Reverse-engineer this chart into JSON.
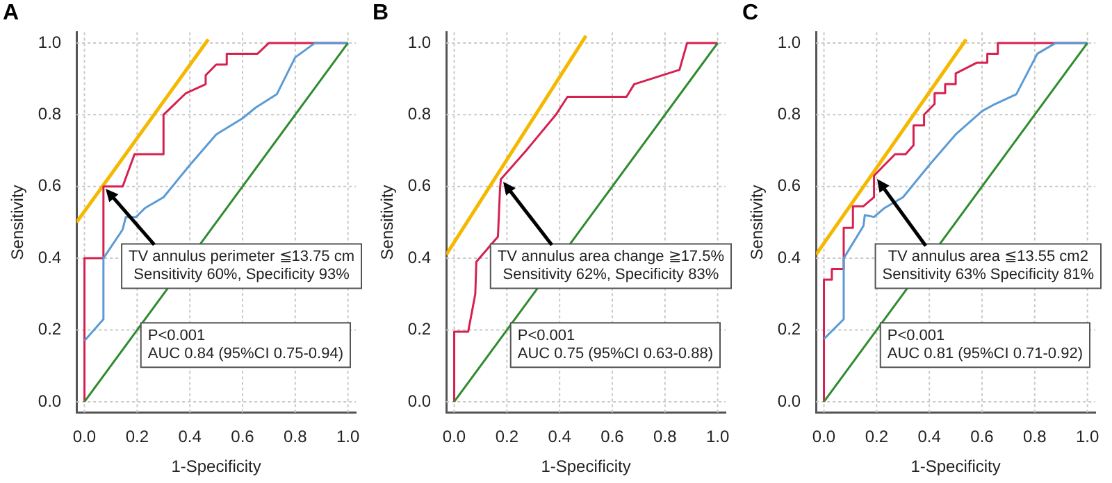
{
  "chart_data": [
    {
      "type": "line",
      "title": "A",
      "xlabel": "1-Specificity",
      "ylabel": "Sensitivity",
      "xlim": [
        -0.03,
        1.03
      ],
      "ylim": [
        -0.03,
        1.03
      ],
      "xticks": [
        {
          "value": 0,
          "label": "0.0"
        },
        {
          "value": 0.2,
          "label": "0.2"
        },
        {
          "value": 0.4,
          "label": "0.4"
        },
        {
          "value": 0.6,
          "label": "0.6"
        },
        {
          "value": 0.8,
          "label": "0.8"
        },
        {
          "value": 1,
          "label": "1.0"
        }
      ],
      "yticks": [
        {
          "value": 0,
          "label": "0.0"
        },
        {
          "value": 0.2,
          "label": "0.2"
        },
        {
          "value": 0.4,
          "label": "0.4"
        },
        {
          "value": 0.6,
          "label": "0.6"
        },
        {
          "value": 0.8,
          "label": "0.8"
        },
        {
          "value": 1,
          "label": "1.0"
        }
      ],
      "grid": true,
      "marker": "none",
      "line_style": "solid",
      "series": [
        {
          "color": "#2e8b2e",
          "x": [
            0,
            1
          ],
          "values": [
            0,
            1
          ]
        },
        {
          "color": "#5b9bd5",
          "x": [
            0,
            0.072,
            0.072,
            0.145,
            0.157,
            0.196,
            0.23,
            0.3,
            0.4,
            0.5,
            0.6,
            0.65,
            0.73,
            0.8,
            0.875,
            1
          ],
          "values": [
            0.17,
            0.23,
            0.4,
            0.48,
            0.515,
            0.515,
            0.54,
            0.57,
            0.66,
            0.745,
            0.79,
            0.82,
            0.857,
            0.96,
            1,
            1
          ]
        },
        {
          "color": "#d6204f",
          "x": [
            0,
            0,
            0.072,
            0.072,
            0.145,
            0.19,
            0.3,
            0.3,
            0.385,
            0.46,
            0.46,
            0.5,
            0.54,
            0.54,
            0.657,
            0.7,
            1
          ],
          "values": [
            0,
            0.4,
            0.4,
            0.6,
            0.6,
            0.69,
            0.69,
            0.8,
            0.86,
            0.885,
            0.91,
            0.94,
            0.94,
            0.97,
            0.97,
            1,
            1
          ]
        },
        {
          "color": "#f5b800",
          "x": [
            -0.03,
            0.47
          ],
          "values": [
            0.5,
            1.01
          ]
        }
      ],
      "annotations": [
        {
          "text": "TV annulus perimeter ≦13.75 cm\nSensitivity 60%, Specificity 93%",
          "x": 0.072,
          "y": 0.6
        },
        "P<0.001\nAUC 0.84 (95%CI 0.75-0.94)"
      ]
    },
    {
      "type": "line",
      "title": "B",
      "xlabel": "1-Specificity",
      "ylabel": "Sensitivity",
      "xlim": [
        -0.03,
        1.03
      ],
      "ylim": [
        -0.03,
        1.03
      ],
      "xticks": [
        {
          "value": 0,
          "label": "0.0"
        },
        {
          "value": 0.2,
          "label": "0.2"
        },
        {
          "value": 0.4,
          "label": "0.4"
        },
        {
          "value": 0.6,
          "label": "0.6"
        },
        {
          "value": 0.8,
          "label": "0.8"
        },
        {
          "value": 1,
          "label": "1.0"
        }
      ],
      "yticks": [
        {
          "value": 0,
          "label": "0.0"
        },
        {
          "value": 0.2,
          "label": "0.2"
        },
        {
          "value": 0.4,
          "label": "0.4"
        },
        {
          "value": 0.6,
          "label": "0.6"
        },
        {
          "value": 0.8,
          "label": "0.8"
        },
        {
          "value": 1,
          "label": "1.0"
        }
      ],
      "grid": true,
      "marker": "none",
      "line_style": "solid",
      "series": [
        {
          "color": "#2e8b2e",
          "x": [
            0,
            1
          ],
          "values": [
            0,
            1
          ]
        },
        {
          "color": "#d6204f",
          "x": [
            0,
            0,
            0.053,
            0.08,
            0.084,
            0.166,
            0.174,
            0.177,
            0.273,
            0.386,
            0.43,
            0.654,
            0.683,
            0.855,
            0.884,
            1
          ],
          "values": [
            0,
            0.195,
            0.195,
            0.3,
            0.39,
            0.46,
            0.595,
            0.62,
            0.7,
            0.8,
            0.85,
            0.85,
            0.885,
            0.925,
            1,
            1
          ]
        },
        {
          "color": "#f5b800",
          "x": [
            -0.03,
            0.5
          ],
          "values": [
            0.41,
            1.02
          ]
        }
      ],
      "annotations": [
        {
          "text": "TV annulus area change ≧17.5%\nSensitivity 62%, Specificity 83%",
          "x": 0.177,
          "y": 0.62
        },
        "P<0.001\nAUC 0.75 (95%CI 0.63-0.88)"
      ]
    },
    {
      "type": "line",
      "title": "C",
      "xlabel": "1-Specificity",
      "ylabel": "Sensitivity",
      "xlim": [
        -0.03,
        1.03
      ],
      "ylim": [
        -0.03,
        1.03
      ],
      "xticks": [
        {
          "value": 0,
          "label": "0.0"
        },
        {
          "value": 0.2,
          "label": "0.2"
        },
        {
          "value": 0.4,
          "label": "0.4"
        },
        {
          "value": 0.6,
          "label": "0.6"
        },
        {
          "value": 0.8,
          "label": "0.8"
        },
        {
          "value": 1,
          "label": "1.0"
        }
      ],
      "yticks": [
        {
          "value": 0,
          "label": "0.0"
        },
        {
          "value": 0.2,
          "label": "0.2"
        },
        {
          "value": 0.4,
          "label": "0.4"
        },
        {
          "value": 0.6,
          "label": "0.6"
        },
        {
          "value": 0.8,
          "label": "0.8"
        },
        {
          "value": 1,
          "label": "1.0"
        }
      ],
      "grid": true,
      "marker": "none",
      "line_style": "solid",
      "series": [
        {
          "color": "#2e8b2e",
          "x": [
            0,
            1
          ],
          "values": [
            0,
            1
          ]
        },
        {
          "color": "#5b9bd5",
          "x": [
            0,
            0.075,
            0.075,
            0.15,
            0.155,
            0.19,
            0.23,
            0.3,
            0.4,
            0.5,
            0.6,
            0.65,
            0.73,
            0.81,
            0.88,
            1
          ],
          "values": [
            0.175,
            0.23,
            0.4,
            0.49,
            0.52,
            0.515,
            0.54,
            0.57,
            0.66,
            0.745,
            0.81,
            0.83,
            0.857,
            0.97,
            1,
            1
          ]
        },
        {
          "color": "#d6204f",
          "x": [
            0,
            0,
            0.03,
            0.03,
            0.075,
            0.075,
            0.11,
            0.11,
            0.15,
            0.19,
            0.19,
            0.27,
            0.31,
            0.34,
            0.34,
            0.38,
            0.38,
            0.42,
            0.42,
            0.46,
            0.46,
            0.5,
            0.5,
            0.58,
            0.62,
            0.62,
            0.66,
            0.66,
            1
          ],
          "values": [
            0,
            0.34,
            0.34,
            0.37,
            0.37,
            0.485,
            0.485,
            0.545,
            0.545,
            0.57,
            0.63,
            0.69,
            0.69,
            0.715,
            0.77,
            0.77,
            0.8,
            0.83,
            0.86,
            0.86,
            0.885,
            0.885,
            0.915,
            0.945,
            0.945,
            0.97,
            0.97,
            1,
            1
          ]
        },
        {
          "color": "#f5b800",
          "x": [
            -0.03,
            0.54
          ],
          "values": [
            0.41,
            1.01
          ]
        }
      ],
      "annotations": [
        {
          "text": "TV annulus area ≦13.55 cm2\nSensitivity 63% Specificity 81%",
          "x": 0.19,
          "y": 0.63
        },
        "P<0.001\nAUC 0.81 (95%CI 0.71-0.92)"
      ]
    }
  ]
}
